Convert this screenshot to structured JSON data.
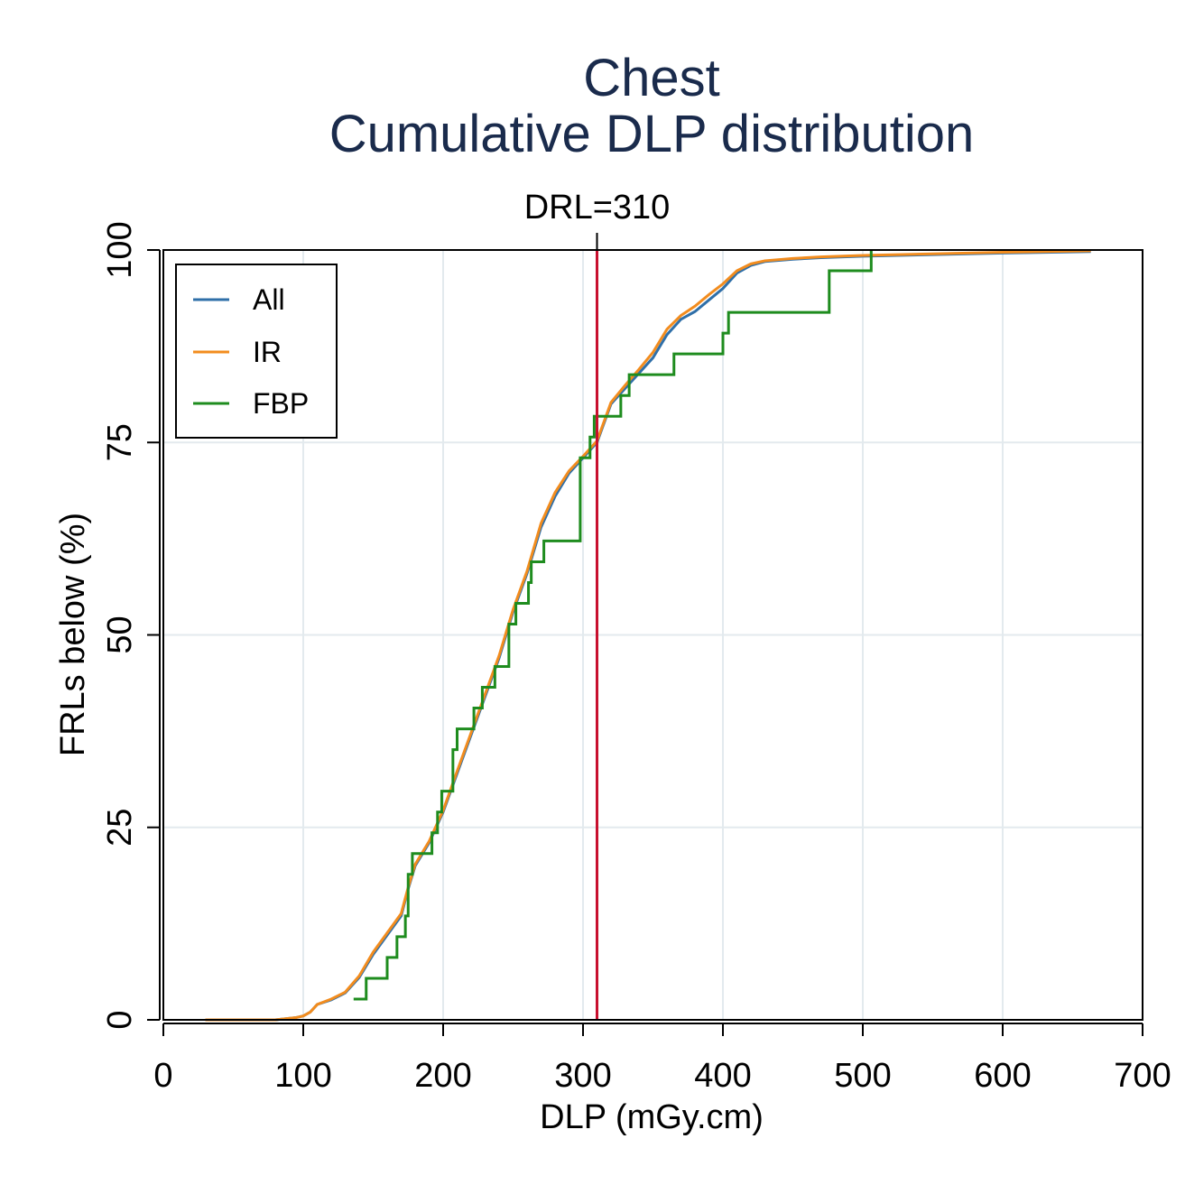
{
  "chart_data": {
    "type": "line",
    "step": true,
    "title": "Chest",
    "subtitle": "Cumulative DLP distribution",
    "xlabel": "DLP (mGy.cm)",
    "ylabel": "FRLs below (%)",
    "xlim": [
      0,
      700
    ],
    "ylim": [
      0,
      100
    ],
    "xticks": [
      0,
      100,
      200,
      300,
      400,
      500,
      600,
      700
    ],
    "yticks": [
      0,
      25,
      50,
      75,
      100
    ],
    "grid": true,
    "legend_position": "top-left",
    "reference_line": {
      "x": 310,
      "label": "DRL=310",
      "color": "#c8102e"
    },
    "series": [
      {
        "name": "All",
        "color": "#2f6fa8",
        "points": [
          [
            30,
            0
          ],
          [
            60,
            0
          ],
          [
            80,
            0
          ],
          [
            95,
            0.3
          ],
          [
            100,
            0.5
          ],
          [
            105,
            1
          ],
          [
            110,
            2
          ],
          [
            120,
            2.6
          ],
          [
            130,
            3.5
          ],
          [
            140,
            5.5
          ],
          [
            150,
            8.5
          ],
          [
            160,
            11
          ],
          [
            170,
            13.5
          ],
          [
            175,
            17
          ],
          [
            180,
            20
          ],
          [
            190,
            23
          ],
          [
            200,
            27
          ],
          [
            210,
            32
          ],
          [
            220,
            37
          ],
          [
            230,
            42
          ],
          [
            240,
            47
          ],
          [
            250,
            53
          ],
          [
            260,
            58
          ],
          [
            270,
            64
          ],
          [
            280,
            68
          ],
          [
            290,
            71
          ],
          [
            300,
            73
          ],
          [
            310,
            75
          ],
          [
            320,
            80
          ],
          [
            330,
            82
          ],
          [
            340,
            84
          ],
          [
            350,
            86
          ],
          [
            360,
            89
          ],
          [
            370,
            91
          ],
          [
            380,
            92
          ],
          [
            390,
            93.5
          ],
          [
            400,
            95
          ],
          [
            410,
            97
          ],
          [
            420,
            98
          ],
          [
            430,
            98.5
          ],
          [
            450,
            98.8
          ],
          [
            470,
            99
          ],
          [
            500,
            99.2
          ],
          [
            550,
            99.4
          ],
          [
            600,
            99.6
          ],
          [
            663,
            99.8
          ]
        ]
      },
      {
        "name": "IR",
        "color": "#f28c1e",
        "points": [
          [
            30,
            0
          ],
          [
            60,
            0
          ],
          [
            80,
            0
          ],
          [
            95,
            0.3
          ],
          [
            100,
            0.5
          ],
          [
            105,
            1
          ],
          [
            110,
            2
          ],
          [
            120,
            2.7
          ],
          [
            130,
            3.6
          ],
          [
            140,
            5.7
          ],
          [
            150,
            8.8
          ],
          [
            160,
            11.3
          ],
          [
            170,
            13.8
          ],
          [
            175,
            17.2
          ],
          [
            180,
            20.2
          ],
          [
            190,
            23.2
          ],
          [
            200,
            27.2
          ],
          [
            210,
            32.3
          ],
          [
            220,
            37.3
          ],
          [
            230,
            42.3
          ],
          [
            240,
            47.3
          ],
          [
            250,
            53.3
          ],
          [
            260,
            58.3
          ],
          [
            270,
            64.5
          ],
          [
            280,
            68.5
          ],
          [
            290,
            71.3
          ],
          [
            300,
            73.2
          ],
          [
            310,
            75.2
          ],
          [
            320,
            80.2
          ],
          [
            330,
            82.4
          ],
          [
            340,
            84.5
          ],
          [
            350,
            86.7
          ],
          [
            360,
            89.7
          ],
          [
            370,
            91.5
          ],
          [
            380,
            92.7
          ],
          [
            390,
            94.2
          ],
          [
            400,
            95.6
          ],
          [
            410,
            97.3
          ],
          [
            420,
            98.2
          ],
          [
            430,
            98.6
          ],
          [
            450,
            98.9
          ],
          [
            470,
            99.1
          ],
          [
            500,
            99.3
          ],
          [
            550,
            99.5
          ],
          [
            600,
            99.7
          ],
          [
            663,
            99.9
          ]
        ]
      },
      {
        "name": "FBP",
        "color": "#1e8c1e",
        "points": [
          [
            136,
            2.7
          ],
          [
            145,
            2.7
          ],
          [
            145,
            5.4
          ],
          [
            160,
            5.4
          ],
          [
            160,
            8.1
          ],
          [
            167,
            8.1
          ],
          [
            167,
            10.8
          ],
          [
            173,
            10.8
          ],
          [
            173,
            13.5
          ],
          [
            175,
            13.5
          ],
          [
            175,
            18.9
          ],
          [
            178,
            18.9
          ],
          [
            178,
            21.6
          ],
          [
            192,
            21.6
          ],
          [
            192,
            24.3
          ],
          [
            196,
            24.3
          ],
          [
            196,
            27
          ],
          [
            199,
            27
          ],
          [
            199,
            29.7
          ],
          [
            207,
            29.7
          ],
          [
            207,
            35.1
          ],
          [
            210,
            35.1
          ],
          [
            210,
            37.8
          ],
          [
            222,
            37.8
          ],
          [
            222,
            40.5
          ],
          [
            228,
            40.5
          ],
          [
            228,
            43.2
          ],
          [
            237,
            43.2
          ],
          [
            237,
            45.9
          ],
          [
            247,
            45.9
          ],
          [
            247,
            51.4
          ],
          [
            252,
            51.4
          ],
          [
            252,
            54.1
          ],
          [
            261,
            54.1
          ],
          [
            261,
            56.8
          ],
          [
            263,
            56.8
          ],
          [
            263,
            59.5
          ],
          [
            272,
            59.5
          ],
          [
            272,
            62.2
          ],
          [
            298,
            62.2
          ],
          [
            298,
            73
          ],
          [
            305,
            73
          ],
          [
            305,
            75.7
          ],
          [
            308,
            75.7
          ],
          [
            308,
            78.4
          ],
          [
            327,
            78.4
          ],
          [
            327,
            81.1
          ],
          [
            333,
            81.1
          ],
          [
            333,
            83.8
          ],
          [
            365,
            83.8
          ],
          [
            365,
            86.5
          ],
          [
            400,
            86.5
          ],
          [
            400,
            89.2
          ],
          [
            404,
            89.2
          ],
          [
            404,
            91.9
          ],
          [
            476,
            91.9
          ],
          [
            476,
            97.3
          ],
          [
            506,
            97.3
          ],
          [
            506,
            100
          ]
        ]
      }
    ]
  }
}
